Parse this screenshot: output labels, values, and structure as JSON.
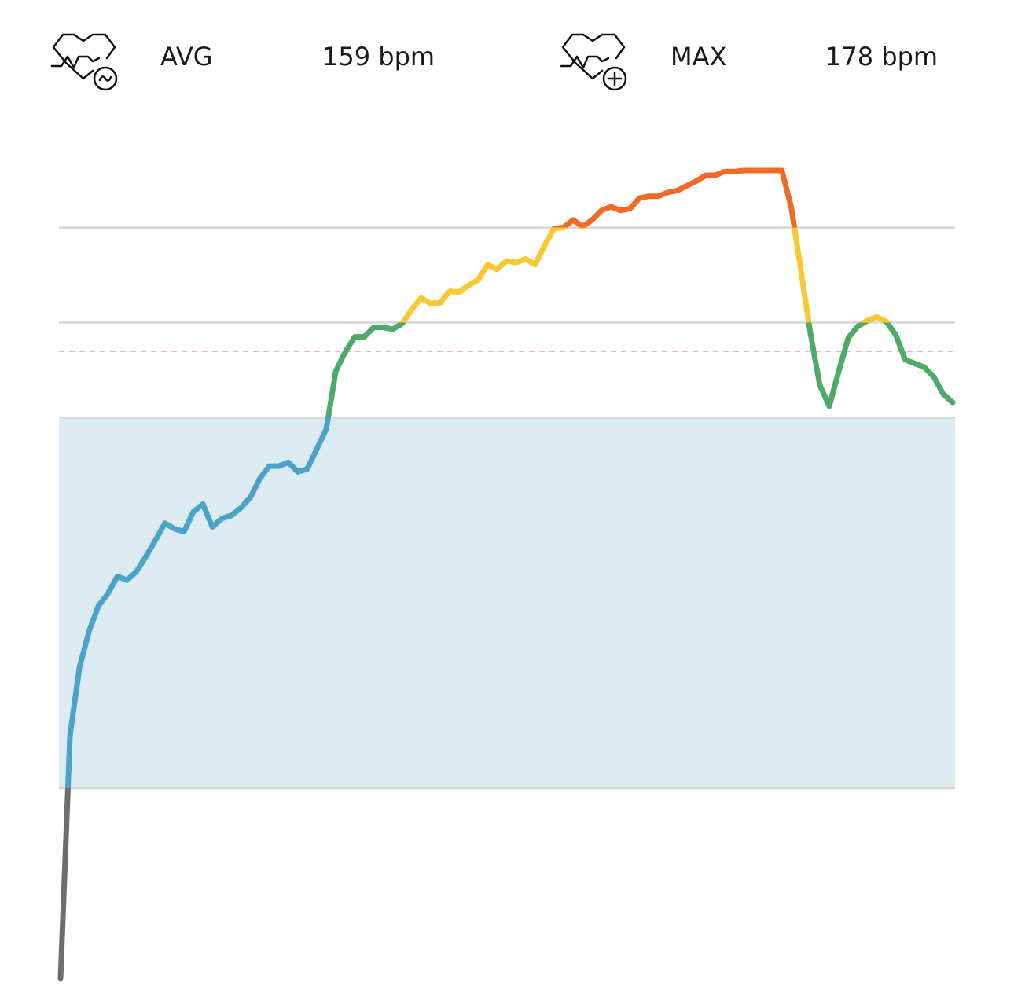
{
  "header": {
    "stats": [
      {
        "label": "AVG",
        "value": "159 bpm"
      },
      {
        "label": "MAX",
        "value": "178 bpm"
      }
    ]
  },
  "chart_data": {
    "type": "line",
    "values": [
      93,
      118.6,
      125.7,
      129.5,
      132.2,
      133.5,
      135.3,
      134.9,
      135.8,
      137.4,
      139.1,
      140.9,
      140.3,
      140.0,
      142.1,
      142.9,
      140.5,
      141.4,
      141.7,
      142.5,
      143.6,
      145.6,
      146.9,
      146.9,
      147.3,
      146.3,
      146.6,
      148.7,
      150.8,
      156.9,
      158.9,
      160.5,
      160.5,
      161.5,
      161.5,
      161.3,
      161.9,
      163.4,
      164.6,
      164.0,
      164.1,
      165.3,
      165.2,
      165.9,
      166.5,
      168.1,
      167.6,
      168.5,
      168.3,
      168.7,
      168.1,
      170.1,
      171.9,
      172.0,
      172.8,
      172.1,
      172.8,
      173.8,
      174.2,
      173.8,
      174.0,
      175.1,
      175.3,
      175.3,
      175.7,
      175.9,
      176.4,
      176.9,
      177.5,
      177.5,
      177.9,
      177.9,
      178,
      178,
      178,
      178,
      178,
      174.1,
      167.6,
      160.9,
      155.4,
      153.2,
      156.9,
      160.4,
      161.6,
      162.2,
      162.6,
      162.1,
      160.7,
      158.1,
      157.7,
      157.3,
      156.3,
      154.5,
      153.6
    ],
    "ylim": [
      93,
      178
    ],
    "grid_lines": [
      113,
      152,
      162,
      172
    ],
    "grid_color": "#d6d6d6",
    "shaded_band": [
      113,
      152
    ],
    "shaded_color": "#dcebf2",
    "avg_line": 159,
    "avg_line_color": "#e8607a",
    "zone_colors": [
      "#6e6e6e",
      "#4ba3c7",
      "#4daa6a",
      "#f9c730",
      "#f06a25"
    ]
  }
}
